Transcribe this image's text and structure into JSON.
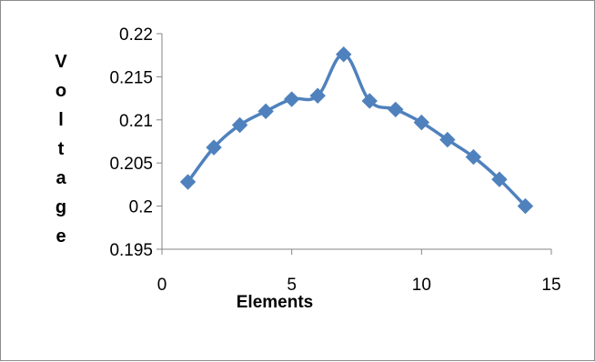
{
  "chart_data": {
    "type": "line",
    "title": "",
    "xlabel": "Elements",
    "ylabel": "Voltage",
    "xlim": [
      0,
      15
    ],
    "ylim": [
      0.195,
      0.22
    ],
    "x_ticks": [
      "0",
      "5",
      "10",
      "15"
    ],
    "y_ticks": [
      "0.195",
      "0.2",
      "0.205",
      "0.21",
      "0.215",
      "0.22"
    ],
    "grid": false,
    "legend": "none",
    "marker": "diamond",
    "line_color": "#4f81bd",
    "series": [
      {
        "x": [
          1,
          2,
          3,
          4,
          5,
          6,
          7,
          8,
          9,
          10,
          11,
          12,
          13,
          14
        ],
        "values": [
          0.2028,
          0.2068,
          0.2094,
          0.211,
          0.2124,
          0.2128,
          0.2176,
          0.2122,
          0.2112,
          0.2097,
          0.2077,
          0.2057,
          0.2031,
          0.2
        ]
      }
    ]
  }
}
